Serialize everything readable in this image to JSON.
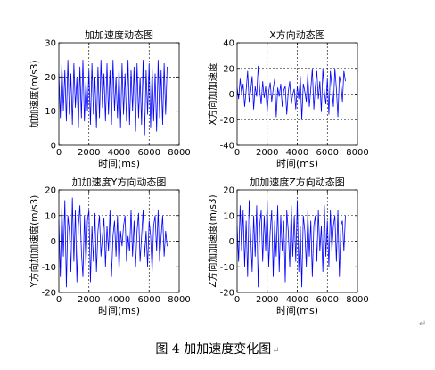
{
  "figure_caption": "图 4  加加速度变化图",
  "paragraph_mark": "↵",
  "chart_data": [
    {
      "type": "line",
      "title": "加加速度动态图",
      "xlabel": "时间(ms)",
      "ylabel": "加加速度(m/s3)",
      "xlim": [
        0,
        8000
      ],
      "ylim": [
        0,
        30
      ],
      "xticks": [
        0,
        2000,
        4000,
        6000,
        8000
      ],
      "yticks": [
        0,
        10,
        20,
        30
      ],
      "grid": true,
      "line_color": "#0000ff",
      "series": [
        {
          "x": [
            0,
            100,
            200,
            300,
            400,
            500,
            600,
            700,
            800,
            900,
            1000,
            1100,
            1200,
            1300,
            1400,
            1500,
            1600,
            1700,
            1800,
            1900,
            2000,
            2100,
            2200,
            2300,
            2400,
            2500,
            2600,
            2700,
            2800,
            2900,
            3000,
            3100,
            3200,
            3300,
            3400,
            3500,
            3600,
            3700,
            3800,
            3900,
            4000,
            4100,
            4200,
            4300,
            4400,
            4500,
            4600,
            4700,
            4800,
            4900,
            5000,
            5100,
            5200,
            5300,
            5400,
            5500,
            5600,
            5700,
            5800,
            5900,
            6000,
            6100,
            6200,
            6300,
            6400,
            6500,
            6600,
            6700,
            6800,
            6900,
            7000,
            7100,
            7200
          ],
          "y": [
            21,
            8,
            24,
            10,
            22,
            7,
            25,
            9,
            21,
            6,
            24,
            11,
            20,
            5,
            23,
            8,
            25,
            7,
            19,
            10,
            22,
            6,
            24,
            9,
            20,
            5,
            23,
            8,
            25,
            11,
            21,
            7,
            24,
            9,
            22,
            6,
            25,
            10,
            20,
            8,
            23,
            5,
            24,
            9,
            21,
            7,
            25,
            6,
            22,
            10,
            23,
            4,
            24,
            8,
            20,
            6,
            25,
            3,
            22,
            9,
            24,
            5,
            23,
            7,
            21,
            4,
            25,
            8,
            22,
            6,
            24,
            9,
            23
          ]
        }
      ]
    },
    {
      "type": "line",
      "title": "X方向动态图",
      "xlabel": "时间(ms)",
      "ylabel": "X方向加加速度",
      "xlim": [
        0,
        8000
      ],
      "ylim": [
        -40,
        40
      ],
      "xticks": [
        0,
        2000,
        4000,
        6000,
        8000
      ],
      "yticks": [
        -40,
        -20,
        0,
        20,
        40
      ],
      "grid": true,
      "line_color": "#0000ff",
      "series": [
        {
          "x": [
            0,
            100,
            200,
            300,
            400,
            500,
            600,
            700,
            800,
            900,
            1000,
            1100,
            1200,
            1300,
            1400,
            1500,
            1600,
            1700,
            1800,
            1900,
            2000,
            2100,
            2200,
            2300,
            2400,
            2500,
            2600,
            2700,
            2800,
            2900,
            3000,
            3100,
            3200,
            3300,
            3400,
            3500,
            3600,
            3700,
            3800,
            3900,
            4000,
            4100,
            4200,
            4300,
            4400,
            4500,
            4600,
            4700,
            4800,
            4900,
            5000,
            5100,
            5200,
            5300,
            5400,
            5500,
            5600,
            5700,
            5800,
            5900,
            6000,
            6100,
            6200,
            6300,
            6400,
            6500,
            6600,
            6700,
            6800,
            6900,
            7000,
            7100,
            7200
          ],
          "y": [
            5,
            -4,
            12,
            0,
            8,
            -10,
            3,
            18,
            -6,
            2,
            14,
            -12,
            6,
            -2,
            22,
            4,
            -8,
            10,
            -3,
            6,
            -14,
            2,
            9,
            -6,
            4,
            12,
            -18,
            5,
            -2,
            8,
            -10,
            3,
            6,
            -16,
            2,
            10,
            -8,
            0,
            4,
            -12,
            6,
            -4,
            14,
            -20,
            8,
            2,
            -6,
            16,
            -10,
            4,
            20,
            -12,
            6,
            18,
            -4,
            10,
            -14,
            20,
            2,
            -8,
            12,
            -16,
            18,
            6,
            -10,
            20,
            4,
            -18,
            14,
            8,
            -6,
            18,
            10
          ]
        }
      ]
    },
    {
      "type": "line",
      "title": "加加速度Y方向动态图",
      "xlabel": "时间(ms)",
      "ylabel": "Y方向加加速度(m/s3)",
      "xlim": [
        0,
        8000
      ],
      "ylim": [
        -20,
        20
      ],
      "xticks": [
        0,
        2000,
        4000,
        6000,
        8000
      ],
      "yticks": [
        -20,
        -10,
        0,
        10,
        20
      ],
      "grid": true,
      "line_color": "#0000ff",
      "series": [
        {
          "x": [
            0,
            100,
            200,
            300,
            400,
            500,
            600,
            700,
            800,
            900,
            1000,
            1100,
            1200,
            1300,
            1400,
            1500,
            1600,
            1700,
            1800,
            1900,
            2000,
            2100,
            2200,
            2300,
            2400,
            2500,
            2600,
            2700,
            2800,
            2900,
            3000,
            3100,
            3200,
            3300,
            3400,
            3500,
            3600,
            3700,
            3800,
            3900,
            4000,
            4100,
            4200,
            4300,
            4400,
            4500,
            4600,
            4700,
            4800,
            4900,
            5000,
            5100,
            5200,
            5300,
            5400,
            5500,
            5600,
            5700,
            5800,
            5900,
            6000,
            6100,
            6200,
            6300,
            6400,
            6500,
            6600,
            6700,
            6800,
            6900,
            7000,
            7100,
            7200
          ],
          "y": [
            8,
            -14,
            14,
            -6,
            16,
            -18,
            10,
            4,
            -12,
            17,
            -8,
            12,
            -16,
            6,
            14,
            -4,
            -14,
            10,
            -10,
            8,
            12,
            -16,
            6,
            -8,
            11,
            -12,
            4,
            10,
            -6,
            2,
            9,
            -10,
            6,
            -4,
            12,
            -14,
            2,
            8,
            -6,
            10,
            -12,
            4,
            -2,
            6,
            10,
            -8,
            2,
            -4,
            12,
            -6,
            8,
            -10,
            4,
            11,
            -8,
            2,
            12,
            -6,
            4,
            -10,
            8,
            2,
            -12,
            6,
            10,
            -4,
            12,
            -8,
            2,
            10,
            -6,
            4,
            -2
          ]
        }
      ]
    },
    {
      "type": "line",
      "title": "加加速度Z方向动态图",
      "xlabel": "时间(ms)",
      "ylabel": "Z方向加加速度(m/s3)",
      "xlim": [
        0,
        8000
      ],
      "ylim": [
        -20,
        20
      ],
      "xticks": [
        0,
        2000,
        4000,
        6000,
        8000
      ],
      "yticks": [
        -20,
        -10,
        0,
        10,
        20
      ],
      "grid": true,
      "line_color": "#0000ff",
      "series": [
        {
          "x": [
            0,
            100,
            200,
            300,
            400,
            500,
            600,
            700,
            800,
            900,
            1000,
            1100,
            1200,
            1300,
            1400,
            1500,
            1600,
            1700,
            1800,
            1900,
            2000,
            2100,
            2200,
            2300,
            2400,
            2500,
            2600,
            2700,
            2800,
            2900,
            3000,
            3100,
            3200,
            3300,
            3400,
            3500,
            3600,
            3700,
            3800,
            3900,
            4000,
            4100,
            4200,
            4300,
            4400,
            4500,
            4600,
            4700,
            4800,
            4900,
            5000,
            5100,
            5200,
            5300,
            5400,
            5500,
            5600,
            5700,
            5800,
            5900,
            6000,
            6100,
            6200,
            6300,
            6400,
            6500,
            6600,
            6700,
            6800,
            6900,
            7000,
            7100,
            7200
          ],
          "y": [
            6,
            -8,
            14,
            -4,
            12,
            -10,
            8,
            -14,
            16,
            2,
            -12,
            10,
            -6,
            14,
            -18,
            6,
            12,
            -8,
            10,
            -4,
            16,
            -10,
            4,
            12,
            -14,
            8,
            -6,
            14,
            -12,
            10,
            -4,
            8,
            -16,
            12,
            4,
            -10,
            14,
            -6,
            10,
            -8,
            16,
            -12,
            6,
            -18,
            10,
            4,
            -10,
            12,
            -6,
            8,
            -14,
            6,
            10,
            -8,
            12,
            -4,
            6,
            -12,
            14,
            -6,
            8,
            -10,
            12,
            -4,
            6,
            10,
            -8,
            12,
            -14,
            6,
            8,
            -4,
            10
          ]
        }
      ]
    }
  ]
}
